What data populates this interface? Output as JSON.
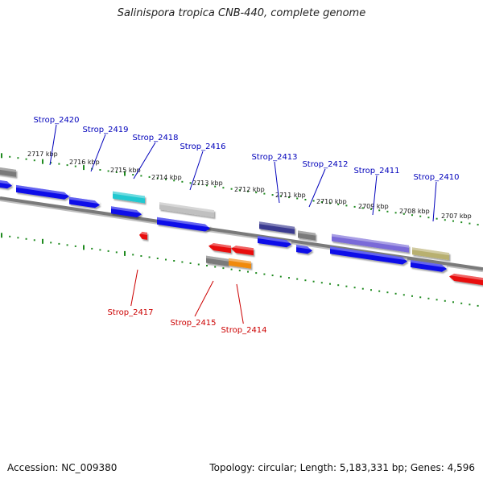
{
  "title": "Salinispora tropica CNB-440, complete genome",
  "footer": {
    "accession": "Accession: NC_009380",
    "topology": "Topology: circular; Length: 5,183,331 bp; Genes: 4,596"
  },
  "colors": {
    "backbone": "#7a7a7a",
    "tick": "#1f8a1f",
    "forward_label": "#0000bb",
    "reverse_label": "#cc0000",
    "blue": "#1010e8",
    "cyan": "#20c8d0",
    "gray": "#7a7a7a",
    "lightgray": "#c0c0c0",
    "navy": "#3a3a90",
    "lavender": "#7a6ad8",
    "khaki": "#b8b070",
    "red": "#e81010",
    "orange": "#f08a10"
  },
  "kbp_labels": [
    "2717 kbp",
    "2716 kbp",
    "2715 kbp",
    "2714 kbp",
    "2713 kbp",
    "2712 kbp",
    "2711 kbp",
    "2710 kbp",
    "2709 kbp",
    "2708 kbp",
    "2707 kbp"
  ],
  "gene_labels_forward": [
    "Strop_2420",
    "Strop_2419",
    "Strop_2418",
    "Strop_2416",
    "Strop_2413",
    "Strop_2412",
    "Strop_2411",
    "Strop_2410"
  ],
  "gene_labels_reverse": [
    "Strop_2417",
    "Strop_2415",
    "Strop_2414"
  ]
}
